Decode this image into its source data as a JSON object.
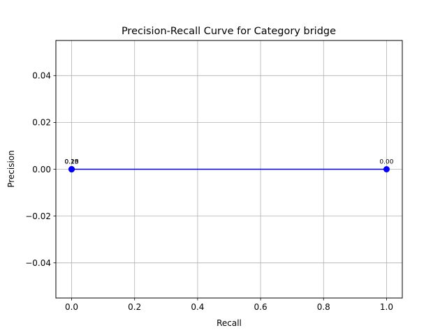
{
  "chart_data": {
    "type": "line",
    "title": "Precision-Recall Curve for Category bridge",
    "xlabel": "Recall",
    "ylabel": "Precision",
    "xlim": [
      -0.05,
      1.05
    ],
    "ylim": [
      -0.055,
      0.055
    ],
    "x_ticks": [
      0.0,
      0.2,
      0.4,
      0.6,
      0.8,
      1.0
    ],
    "x_tick_labels": [
      "0.0",
      "0.2",
      "0.4",
      "0.6",
      "0.8",
      "1.0"
    ],
    "y_ticks": [
      -0.04,
      -0.02,
      0.0,
      0.02,
      0.04
    ],
    "y_tick_labels": [
      "−0.04",
      "−0.02",
      "0.00",
      "0.02",
      "0.04"
    ],
    "grid": true,
    "series": [
      {
        "color": "#0000ff",
        "marker": "circle",
        "points": [
          {
            "x": 0.0,
            "y": 0.0,
            "label": "0.28"
          },
          {
            "x": 0.0,
            "y": 0.0,
            "label": "0.15"
          },
          {
            "x": 0.0,
            "y": 0.0,
            "label": "0.10"
          },
          {
            "x": 1.0,
            "y": 0.0,
            "label": "0.00"
          }
        ]
      }
    ]
  }
}
